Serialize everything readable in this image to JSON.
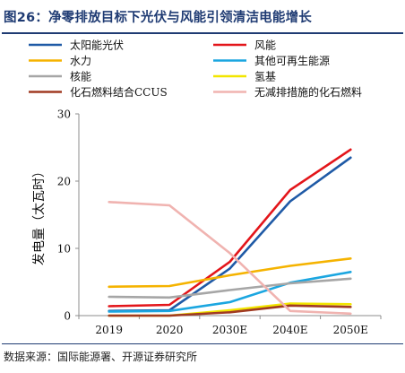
{
  "figure": {
    "title": "图26：净零排放目标下光伏与风能引领清洁电能增长",
    "source": "数据来源：国际能源署、开源证券研究所"
  },
  "chart_data": {
    "type": "line",
    "categories": [
      "2019",
      "2020",
      "2030E",
      "2040E",
      "2050E"
    ],
    "ylabel": "发电量（太瓦时）",
    "xlabel": "",
    "ylim": [
      0,
      30
    ],
    "yticks": [
      0,
      10,
      20,
      30
    ],
    "grid": false,
    "legend_position": "top",
    "series": [
      {
        "name": "太阳能光伏",
        "color": "#1f5aa6",
        "values": [
          0.7,
          0.8,
          7,
          17,
          23.5
        ]
      },
      {
        "name": "风能",
        "color": "#e3151a",
        "values": [
          1.4,
          1.6,
          8,
          18.7,
          24.7
        ]
      },
      {
        "name": "水力",
        "color": "#f5b300",
        "values": [
          4.3,
          4.4,
          6,
          7.4,
          8.5
        ]
      },
      {
        "name": "其他可再生能源",
        "color": "#1ba6e0",
        "values": [
          0.6,
          0.7,
          2,
          4.9,
          6.5
        ]
      },
      {
        "name": "核能",
        "color": "#a6a6a6",
        "values": [
          2.8,
          2.7,
          3.8,
          4.8,
          5.5
        ]
      },
      {
        "name": "氢基",
        "color": "#f2e600",
        "values": [
          0,
          0,
          0.8,
          1.8,
          1.7
        ]
      },
      {
        "name": "化石燃料结合CCUS",
        "color": "#a03a22",
        "values": [
          0,
          0,
          0.5,
          1.5,
          1.3
        ]
      },
      {
        "name": "无减排措施的化石燃料",
        "color": "#f0b3b0",
        "values": [
          16.9,
          16.4,
          9.3,
          0.7,
          0.3
        ]
      }
    ]
  }
}
